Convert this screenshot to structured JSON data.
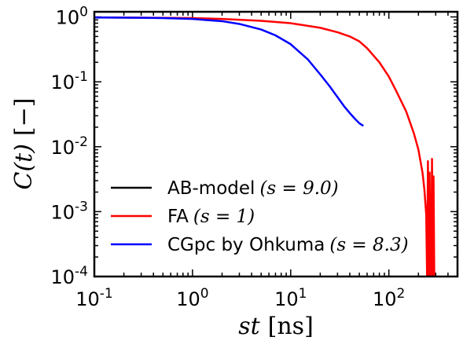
{
  "chart_data": {
    "type": "line",
    "title": "",
    "xlabel": {
      "var": "st",
      "unit": "[ns]"
    },
    "ylabel": {
      "var": "C(t)",
      "unit": "[−]"
    },
    "xscale": "log",
    "yscale": "log",
    "xlim": [
      0.1,
      500
    ],
    "ylim": [
      0.0001,
      1.2
    ],
    "x_ticks": [
      {
        "value": 0.1,
        "base": "10",
        "exp": "-1"
      },
      {
        "value": 1,
        "base": "10",
        "exp": "0"
      },
      {
        "value": 10,
        "base": "10",
        "exp": "1"
      },
      {
        "value": 100,
        "base": "10",
        "exp": "2"
      }
    ],
    "y_ticks": [
      {
        "value": 0.0001,
        "base": "10",
        "exp": "-4"
      },
      {
        "value": 0.001,
        "base": "10",
        "exp": "-3"
      },
      {
        "value": 0.01,
        "base": "10",
        "exp": "-2"
      },
      {
        "value": 0.1,
        "base": "10",
        "exp": "-1"
      },
      {
        "value": 1,
        "base": "10",
        "exp": "0"
      }
    ],
    "grid": false,
    "legend_position": "bottom-left",
    "series": [
      {
        "name": "AB-model",
        "param": "(s = 9.0)",
        "color": "#000000",
        "x": [],
        "y": []
      },
      {
        "name": "FA",
        "param": "(s = 1)",
        "color": "#ff0000",
        "x": [
          0.1,
          0.3,
          1,
          2,
          5,
          10,
          20,
          30,
          40,
          50,
          60,
          80,
          100,
          120,
          150,
          180,
          200,
          220,
          230,
          240,
          245,
          250,
          255,
          260,
          265,
          270,
          275,
          280,
          285,
          290,
          300
        ],
        "y": [
          0.98,
          0.975,
          0.96,
          0.93,
          0.87,
          0.8,
          0.68,
          0.58,
          0.5,
          0.42,
          0.33,
          0.2,
          0.12,
          0.07,
          0.035,
          0.016,
          0.009,
          0.004,
          0.0022,
          0.0009,
          0.0001,
          0.006,
          0.0001,
          0.004,
          0.0001,
          0.0001,
          0.0065,
          0.0001,
          0.0035,
          0.0001,
          0.0001
        ]
      },
      {
        "name": "CGpc by Ohkuma",
        "param": "(s = 8.3)",
        "color": "#0000ff",
        "x": [
          0.1,
          0.3,
          0.5,
          1,
          2,
          3,
          5,
          7,
          10,
          15,
          20,
          25,
          30,
          35,
          40,
          45,
          50,
          55
        ],
        "y": [
          0.98,
          0.97,
          0.96,
          0.93,
          0.86,
          0.78,
          0.64,
          0.52,
          0.38,
          0.22,
          0.13,
          0.085,
          0.058,
          0.042,
          0.033,
          0.027,
          0.023,
          0.021
        ]
      }
    ]
  }
}
